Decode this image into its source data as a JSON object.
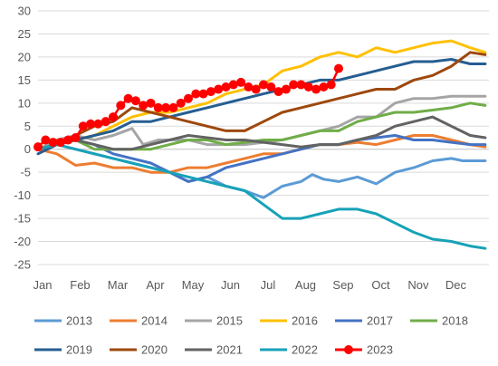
{
  "chart_data": {
    "type": "line",
    "title": "",
    "xlabel": "",
    "ylabel": "",
    "ylim": [
      -25,
      30
    ],
    "y_ticks": [
      "30",
      "25",
      "20",
      "15",
      "10",
      "5",
      "0",
      "-5",
      "-10",
      "-15",
      "-20",
      "-25"
    ],
    "x_ticks": [
      "Jan",
      "Feb",
      "Mar",
      "Apr",
      "May",
      "Jun",
      "Jul",
      "Aug",
      "Sep",
      "Oct",
      "Nov",
      "Dec"
    ],
    "grid": "horizontal",
    "legend_position": "bottom",
    "series": [
      {
        "name": "2013",
        "color": "#5b9bd5",
        "marker": false,
        "points": [
          [
            0,
            0
          ],
          [
            0.5,
            1
          ],
          [
            1,
            0
          ],
          [
            1.5,
            -1
          ],
          [
            2,
            -2
          ],
          [
            2.5,
            -3
          ],
          [
            3,
            -4
          ],
          [
            3.5,
            -5
          ],
          [
            4,
            -7
          ],
          [
            4.5,
            -6
          ],
          [
            5,
            -8
          ],
          [
            5.5,
            -9
          ],
          [
            6,
            -10.5
          ],
          [
            6.5,
            -8
          ],
          [
            7,
            -7
          ],
          [
            7.3,
            -5.5
          ],
          [
            7.6,
            -6.5
          ],
          [
            8,
            -7
          ],
          [
            8.5,
            -6
          ],
          [
            9,
            -7.5
          ],
          [
            9.5,
            -5
          ],
          [
            10,
            -4
          ],
          [
            10.5,
            -2.5
          ],
          [
            11,
            -2
          ],
          [
            11.3,
            -2.5
          ],
          [
            11.9,
            -2.5
          ]
        ]
      },
      {
        "name": "2014",
        "color": "#ed7d31",
        "marker": false,
        "points": [
          [
            0,
            0
          ],
          [
            0.5,
            -1
          ],
          [
            1,
            -3.5
          ],
          [
            1.5,
            -3
          ],
          [
            2,
            -4
          ],
          [
            2.5,
            -4
          ],
          [
            3,
            -5
          ],
          [
            3.5,
            -5
          ],
          [
            4,
            -4
          ],
          [
            4.5,
            -4
          ],
          [
            5,
            -3
          ],
          [
            5.5,
            -2
          ],
          [
            6,
            -1
          ],
          [
            6.5,
            -1
          ],
          [
            7,
            0
          ],
          [
            7.5,
            1
          ],
          [
            8,
            1
          ],
          [
            8.5,
            1.5
          ],
          [
            9,
            1
          ],
          [
            9.5,
            2
          ],
          [
            10,
            3
          ],
          [
            10.5,
            3
          ],
          [
            11,
            2
          ],
          [
            11.5,
            1
          ],
          [
            11.9,
            0.5
          ]
        ]
      },
      {
        "name": "2015",
        "color": "#a5a5a5",
        "marker": false,
        "points": [
          [
            0,
            0
          ],
          [
            0.5,
            2
          ],
          [
            1,
            3
          ],
          [
            1.5,
            2
          ],
          [
            2,
            3
          ],
          [
            2.5,
            4.5
          ],
          [
            2.8,
            1
          ],
          [
            3.2,
            2
          ],
          [
            3.5,
            2
          ],
          [
            4,
            2
          ],
          [
            4.5,
            1
          ],
          [
            5,
            1
          ],
          [
            5.5,
            1
          ],
          [
            6,
            1.5
          ],
          [
            6.5,
            2
          ],
          [
            7,
            3
          ],
          [
            7.5,
            4
          ],
          [
            8,
            5
          ],
          [
            8.5,
            7
          ],
          [
            9,
            7
          ],
          [
            9.5,
            10
          ],
          [
            10,
            11
          ],
          [
            10.5,
            11
          ],
          [
            11,
            11.5
          ],
          [
            11.5,
            11.5
          ],
          [
            11.9,
            11.5
          ]
        ]
      },
      {
        "name": "2016",
        "color": "#ffc000",
        "marker": false,
        "points": [
          [
            0,
            0
          ],
          [
            0.5,
            1
          ],
          [
            1,
            2
          ],
          [
            1.5,
            3
          ],
          [
            2,
            5
          ],
          [
            2.5,
            7
          ],
          [
            3,
            8
          ],
          [
            3.5,
            8
          ],
          [
            4,
            9
          ],
          [
            4.5,
            10
          ],
          [
            5,
            12
          ],
          [
            5.5,
            13
          ],
          [
            6,
            14
          ],
          [
            6.5,
            17
          ],
          [
            7,
            18
          ],
          [
            7.5,
            20
          ],
          [
            8,
            21
          ],
          [
            8.5,
            20
          ],
          [
            9,
            22
          ],
          [
            9.5,
            21
          ],
          [
            10,
            22
          ],
          [
            10.5,
            23
          ],
          [
            11,
            23.5
          ],
          [
            11.5,
            22
          ],
          [
            11.9,
            21
          ]
        ]
      },
      {
        "name": "2017",
        "color": "#4472c4",
        "marker": false,
        "points": [
          [
            0,
            0
          ],
          [
            0.5,
            1
          ],
          [
            1,
            2
          ],
          [
            1.5,
            1
          ],
          [
            2,
            -1
          ],
          [
            2.5,
            -2
          ],
          [
            3,
            -3
          ],
          [
            3.5,
            -5
          ],
          [
            4,
            -7
          ],
          [
            4.5,
            -6
          ],
          [
            5,
            -4
          ],
          [
            5.5,
            -3
          ],
          [
            6,
            -2
          ],
          [
            6.5,
            -1
          ],
          [
            7,
            0
          ],
          [
            7.5,
            1
          ],
          [
            8,
            1
          ],
          [
            8.5,
            2
          ],
          [
            9,
            2.5
          ],
          [
            9.5,
            3
          ],
          [
            10,
            2
          ],
          [
            10.5,
            2
          ],
          [
            11,
            1.5
          ],
          [
            11.5,
            1
          ],
          [
            11.9,
            1
          ]
        ]
      },
      {
        "name": "2018",
        "color": "#70ad47",
        "marker": false,
        "points": [
          [
            0,
            0
          ],
          [
            0.5,
            1
          ],
          [
            1,
            2
          ],
          [
            1.5,
            0
          ],
          [
            2,
            0
          ],
          [
            2.5,
            0
          ],
          [
            3,
            0
          ],
          [
            3.5,
            1
          ],
          [
            4,
            2
          ],
          [
            4.5,
            2
          ],
          [
            5,
            1
          ],
          [
            5.5,
            1.5
          ],
          [
            6,
            2
          ],
          [
            6.5,
            2
          ],
          [
            7,
            3
          ],
          [
            7.5,
            4
          ],
          [
            8,
            4
          ],
          [
            8.5,
            6
          ],
          [
            9,
            7
          ],
          [
            9.5,
            8
          ],
          [
            10,
            8
          ],
          [
            10.5,
            8.5
          ],
          [
            11,
            9
          ],
          [
            11.5,
            10
          ],
          [
            11.9,
            9.5
          ]
        ]
      },
      {
        "name": "2019",
        "color": "#255e91",
        "marker": false,
        "points": [
          [
            0,
            -1
          ],
          [
            0.5,
            1
          ],
          [
            1,
            2
          ],
          [
            1.5,
            3
          ],
          [
            2,
            4
          ],
          [
            2.5,
            6
          ],
          [
            3,
            6
          ],
          [
            3.5,
            7
          ],
          [
            4,
            8
          ],
          [
            4.5,
            9
          ],
          [
            5,
            10
          ],
          [
            5.5,
            11
          ],
          [
            6,
            12
          ],
          [
            6.5,
            13
          ],
          [
            7,
            14
          ],
          [
            7.5,
            15
          ],
          [
            8,
            15
          ],
          [
            8.5,
            16
          ],
          [
            9,
            17
          ],
          [
            9.5,
            18
          ],
          [
            10,
            19
          ],
          [
            10.5,
            19
          ],
          [
            11,
            19.5
          ],
          [
            11.5,
            18.5
          ],
          [
            11.9,
            18.5
          ]
        ]
      },
      {
        "name": "2020",
        "color": "#9e480e",
        "marker": false,
        "points": [
          [
            0,
            0
          ],
          [
            0.5,
            1
          ],
          [
            1,
            3
          ],
          [
            1.5,
            5
          ],
          [
            2,
            6
          ],
          [
            2.5,
            9
          ],
          [
            3,
            8
          ],
          [
            3.5,
            7
          ],
          [
            4,
            6
          ],
          [
            4.5,
            5
          ],
          [
            5,
            4
          ],
          [
            5.5,
            4
          ],
          [
            6,
            6
          ],
          [
            6.5,
            8
          ],
          [
            7,
            9
          ],
          [
            7.5,
            10
          ],
          [
            8,
            11
          ],
          [
            8.5,
            12
          ],
          [
            9,
            13
          ],
          [
            9.5,
            13
          ],
          [
            10,
            15
          ],
          [
            10.5,
            16
          ],
          [
            11,
            18
          ],
          [
            11.5,
            21
          ],
          [
            11.9,
            20.5
          ]
        ]
      },
      {
        "name": "2021",
        "color": "#636363",
        "marker": false,
        "points": [
          [
            0,
            0
          ],
          [
            0.5,
            1
          ],
          [
            1,
            2
          ],
          [
            1.5,
            1
          ],
          [
            2,
            0
          ],
          [
            2.5,
            0
          ],
          [
            3,
            1
          ],
          [
            3.5,
            2
          ],
          [
            4,
            3
          ],
          [
            4.5,
            2.5
          ],
          [
            5,
            2
          ],
          [
            5.5,
            2
          ],
          [
            6,
            1.5
          ],
          [
            6.5,
            1
          ],
          [
            7,
            0.5
          ],
          [
            7.5,
            1
          ],
          [
            8,
            1
          ],
          [
            8.5,
            2
          ],
          [
            9,
            3
          ],
          [
            9.5,
            5
          ],
          [
            10,
            6
          ],
          [
            10.5,
            7
          ],
          [
            11,
            5
          ],
          [
            11.5,
            3
          ],
          [
            11.9,
            2.5
          ]
        ]
      },
      {
        "name": "2022",
        "color": "#17a2b8",
        "marker": false,
        "points": [
          [
            0,
            0
          ],
          [
            0.5,
            1
          ],
          [
            1,
            0
          ],
          [
            1.5,
            -1
          ],
          [
            2,
            -2
          ],
          [
            2.5,
            -3
          ],
          [
            3,
            -4
          ],
          [
            3.5,
            -5
          ],
          [
            4,
            -6
          ],
          [
            4.5,
            -7
          ],
          [
            5,
            -8
          ],
          [
            5.5,
            -9
          ],
          [
            6,
            -12
          ],
          [
            6.5,
            -15
          ],
          [
            7,
            -15
          ],
          [
            7.5,
            -14
          ],
          [
            8,
            -13
          ],
          [
            8.5,
            -13
          ],
          [
            9,
            -14
          ],
          [
            9.5,
            -16
          ],
          [
            10,
            -18
          ],
          [
            10.5,
            -19.5
          ],
          [
            11,
            -20
          ],
          [
            11.5,
            -21
          ],
          [
            11.9,
            -21.5
          ]
        ]
      },
      {
        "name": "2023",
        "color": "#ff0000",
        "marker": true,
        "points": [
          [
            0,
            0.5
          ],
          [
            0.2,
            2
          ],
          [
            0.4,
            1.5
          ],
          [
            0.6,
            1.5
          ],
          [
            0.8,
            2
          ],
          [
            1,
            2.5
          ],
          [
            1.2,
            5
          ],
          [
            1.4,
            5.5
          ],
          [
            1.6,
            5.5
          ],
          [
            1.8,
            6
          ],
          [
            2,
            7
          ],
          [
            2.2,
            9.5
          ],
          [
            2.4,
            11
          ],
          [
            2.6,
            10.5
          ],
          [
            2.8,
            9.5
          ],
          [
            3,
            10
          ],
          [
            3.2,
            9
          ],
          [
            3.4,
            9
          ],
          [
            3.6,
            9
          ],
          [
            3.8,
            10
          ],
          [
            4,
            11
          ],
          [
            4.2,
            12
          ],
          [
            4.4,
            12
          ],
          [
            4.6,
            12.5
          ],
          [
            4.8,
            13
          ],
          [
            5,
            13.5
          ],
          [
            5.2,
            14
          ],
          [
            5.4,
            14.5
          ],
          [
            5.6,
            13.5
          ],
          [
            5.8,
            13
          ],
          [
            6,
            14
          ],
          [
            6.2,
            13.5
          ],
          [
            6.4,
            12.5
          ],
          [
            6.6,
            13
          ],
          [
            6.8,
            14
          ],
          [
            7,
            14
          ],
          [
            7.2,
            13.5
          ],
          [
            7.4,
            13
          ],
          [
            7.6,
            13.5
          ],
          [
            7.8,
            14
          ],
          [
            8,
            17.5
          ]
        ]
      }
    ]
  }
}
